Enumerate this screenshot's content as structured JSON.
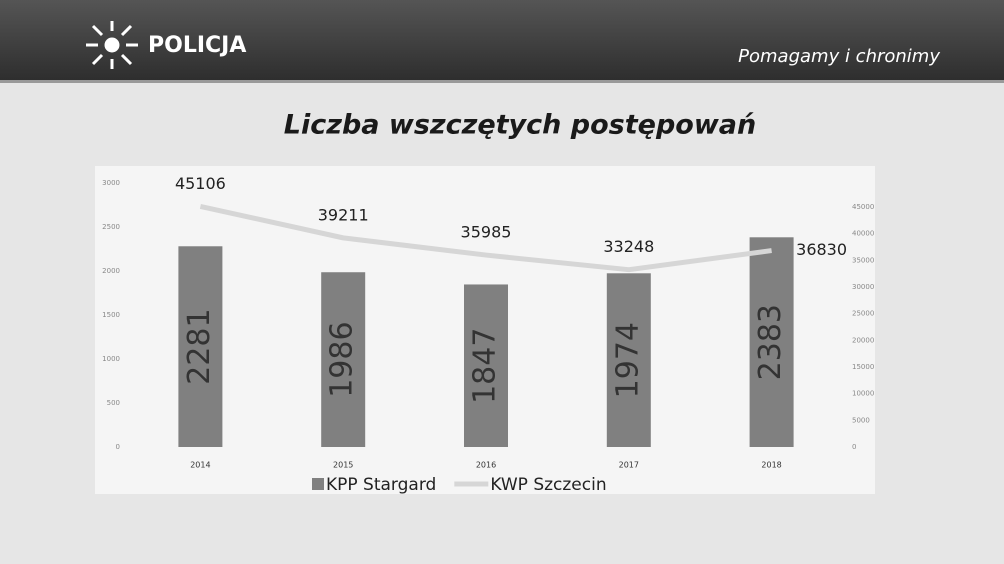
{
  "header": {
    "brand": "POLICJA",
    "slogan": "Pomagamy i chronimy"
  },
  "chart_data": {
    "type": "combo",
    "title": "Liczba wszczętych postępowań",
    "categories": [
      "2014",
      "2015",
      "2016",
      "2017",
      "2018"
    ],
    "series": [
      {
        "name": "KPP Stargard",
        "type": "bar",
        "color": "#808080",
        "values": [
          2281,
          1986,
          1847,
          1974,
          2383
        ]
      },
      {
        "name": "KWP Szczecin",
        "type": "line",
        "axis": "y2",
        "color": "#d6d6d6",
        "values": [
          45106,
          39211,
          35985,
          33248,
          36830
        ]
      }
    ],
    "ylim": [
      0,
      3000
    ],
    "yticks": [
      0,
      500,
      1000,
      1500,
      2000,
      2500,
      3000
    ],
    "y2lim": [
      0,
      45000
    ],
    "y2ticks": [
      0,
      5000,
      10000,
      15000,
      20000,
      25000,
      30000,
      35000,
      40000,
      45000
    ],
    "legend": "bottom",
    "grid": false
  }
}
